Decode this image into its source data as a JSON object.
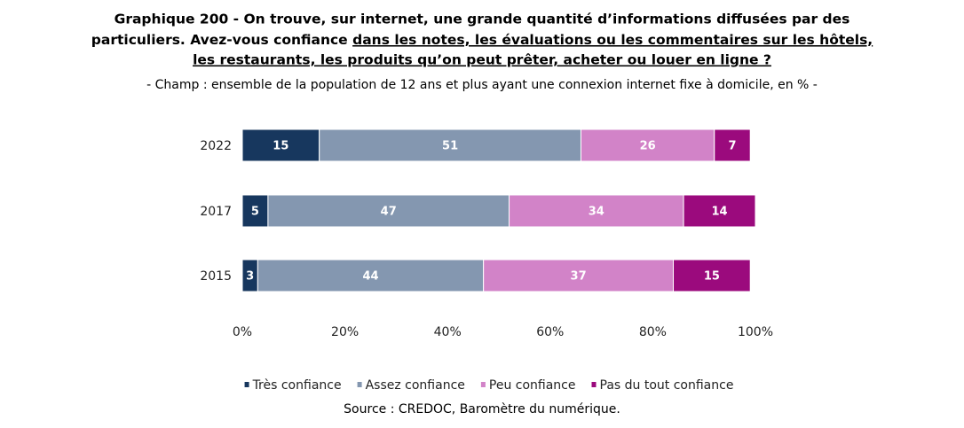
{
  "chart_data": {
    "type": "stacked-bar-horizontal",
    "title": [
      "Graphique 200 - On trouve, sur internet, une grande quantité d’informations diffusées par des",
      "particuliers. Avez-vous confiance",
      "dans les notes, les évaluations ou les commentaires sur les hôtels,",
      "les restaurants, les produits qu’on peut prêter, acheter ou louer en ligne ?"
    ],
    "subtitle": "- Champ : ensemble de la population de 12 ans et plus ayant une connexion internet fixe à domicile, en % -",
    "source": "Source : CREDOC, Baromètre du numérique.",
    "categories": [
      "2022",
      "2017",
      "2015"
    ],
    "series": [
      {
        "name": "Très confiance",
        "color": "#17375e",
        "values": [
          15,
          5,
          3
        ]
      },
      {
        "name": "Assez confiance",
        "color": "#8497b0",
        "values": [
          51,
          47,
          44
        ]
      },
      {
        "name": "Peu confiance",
        "color": "#d283c8",
        "values": [
          26,
          34,
          37
        ]
      },
      {
        "name": "Pas du tout confiance",
        "color": "#9b0a7d",
        "values": [
          7,
          14,
          15
        ]
      }
    ],
    "xlim": [
      0,
      100
    ],
    "xticks": [
      {
        "value": 0,
        "label": "0%"
      },
      {
        "value": 20,
        "label": "20%"
      },
      {
        "value": 40,
        "label": "40%"
      },
      {
        "value": 60,
        "label": "60%"
      },
      {
        "value": 80,
        "label": "80%"
      },
      {
        "value": 100,
        "label": "100%"
      }
    ],
    "legend": "bottom"
  }
}
